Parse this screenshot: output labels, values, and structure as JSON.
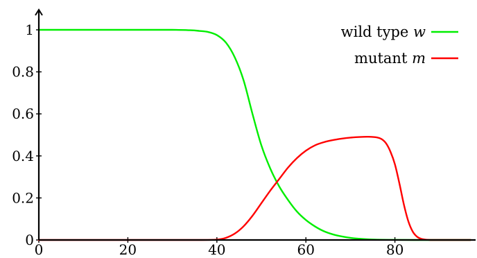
{
  "chart_data": {
    "type": "line",
    "title": "",
    "xlabel": "",
    "ylabel": "",
    "xlim": [
      0,
      98
    ],
    "ylim": [
      0,
      1.05
    ],
    "grid": false,
    "legend_position": "top-right",
    "x_ticks": [
      0,
      20,
      40,
      60,
      80
    ],
    "x_tick_labels": [
      "0",
      "20",
      "40",
      "60",
      "80"
    ],
    "y_ticks": [
      0,
      0.2,
      0.4,
      0.6,
      0.8,
      1
    ],
    "y_tick_labels": [
      "0",
      "0.2",
      "0.4",
      "0.6",
      "0.8",
      "1"
    ],
    "series": [
      {
        "name": "wild type w",
        "label_text": "wild type ",
        "label_var": "w",
        "color": "#00ee00",
        "x": [
          0,
          10,
          20,
          30,
          34,
          36,
          38,
          40,
          42,
          44,
          46,
          48,
          50,
          52,
          54,
          56,
          58,
          60,
          62,
          64,
          66,
          68,
          70,
          72,
          74,
          76,
          80,
          84,
          88,
          92,
          97
        ],
        "y": [
          1.0,
          1.0,
          1.0,
          1.0,
          0.998,
          0.995,
          0.99,
          0.975,
          0.94,
          0.87,
          0.76,
          0.6,
          0.45,
          0.34,
          0.255,
          0.19,
          0.135,
          0.095,
          0.065,
          0.042,
          0.027,
          0.017,
          0.01,
          0.006,
          0.003,
          0.0015,
          0.0005,
          0.0,
          0.0,
          0.0,
          0.0
        ]
      },
      {
        "name": "mutant m",
        "label_text": "mutant ",
        "label_var": "m",
        "color": "#ff0000",
        "x": [
          0,
          20,
          36,
          40,
          42,
          44,
          46,
          48,
          50,
          52,
          54,
          56,
          58,
          60,
          62,
          64,
          66,
          68,
          70,
          72,
          74,
          76,
          77,
          78,
          79,
          80,
          81,
          82,
          83,
          84,
          85,
          86,
          88,
          92,
          97
        ],
        "y": [
          0.0,
          0.0,
          0.0,
          0.002,
          0.01,
          0.03,
          0.065,
          0.115,
          0.175,
          0.235,
          0.29,
          0.345,
          0.39,
          0.425,
          0.45,
          0.465,
          0.475,
          0.482,
          0.487,
          0.49,
          0.491,
          0.488,
          0.48,
          0.46,
          0.42,
          0.36,
          0.27,
          0.17,
          0.09,
          0.04,
          0.015,
          0.005,
          0.0,
          0.0,
          0.0
        ]
      }
    ]
  }
}
